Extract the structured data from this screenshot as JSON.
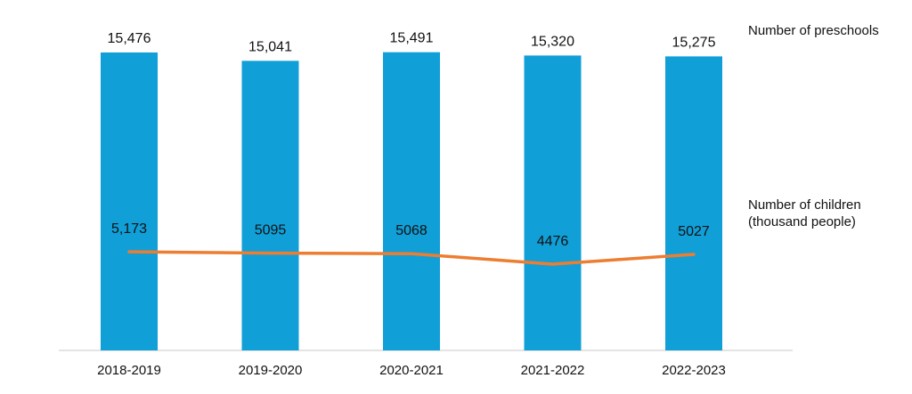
{
  "chart_data": {
    "type": "bar",
    "title": "",
    "xlabel": "",
    "ylabel": "",
    "categories": [
      "2018-2019",
      "2019-2020",
      "2020-2021",
      "2021-2022",
      "2022-2023"
    ],
    "series": [
      {
        "name": "Number of preschools",
        "type": "bar",
        "values": [
          15476,
          15041,
          15491,
          15320,
          15275
        ],
        "labels": [
          "15,476",
          "15,041",
          "15,491",
          "15,320",
          "15,275"
        ],
        "color": "#119fd8"
      },
      {
        "name": "Number of children (thousand people)",
        "name_lines": [
          "Number of children",
          "(thousand people)"
        ],
        "type": "line",
        "values": [
          5173,
          5095,
          5068,
          4476,
          5027
        ],
        "labels": [
          "5,173",
          "5095",
          "5068",
          "4476",
          "5027"
        ],
        "color": "#ed7d31"
      }
    ],
    "grid": false,
    "legend": "right"
  }
}
